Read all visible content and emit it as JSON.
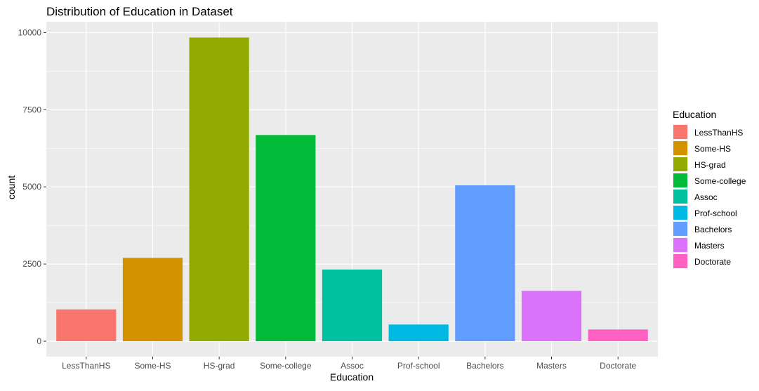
{
  "chart_data": {
    "type": "bar",
    "title": "Distribution of Education in Dataset",
    "xlabel": "Education",
    "ylabel": "count",
    "categories": [
      "LessThanHS",
      "Some-HS",
      "HS-grad",
      "Some-college",
      "Assoc",
      "Prof-school",
      "Bachelors",
      "Masters",
      "Doctorate"
    ],
    "values": [
      1030,
      2700,
      9840,
      6680,
      2320,
      540,
      5050,
      1630,
      380
    ],
    "colors": [
      "#F8766D",
      "#D39200",
      "#93AA00",
      "#00BA38",
      "#00C19F",
      "#00B9E3",
      "#619CFF",
      "#DB72FB",
      "#FF61C3"
    ],
    "ylim": [
      -500,
      10350
    ],
    "yticks": [
      0,
      2500,
      5000,
      7500,
      10000
    ],
    "ytick_labels": [
      "0",
      "2500",
      "5000",
      "7500",
      "10000"
    ],
    "grid": true,
    "panel_background": "#EBEBEB",
    "grid_color": "#FFFFFF",
    "legend": {
      "title": "Education",
      "placement": "right",
      "entries": [
        "LessThanHS",
        "Some-HS",
        "HS-grad",
        "Some-college",
        "Assoc",
        "Prof-school",
        "Bachelors",
        "Masters",
        "Doctorate"
      ]
    }
  }
}
